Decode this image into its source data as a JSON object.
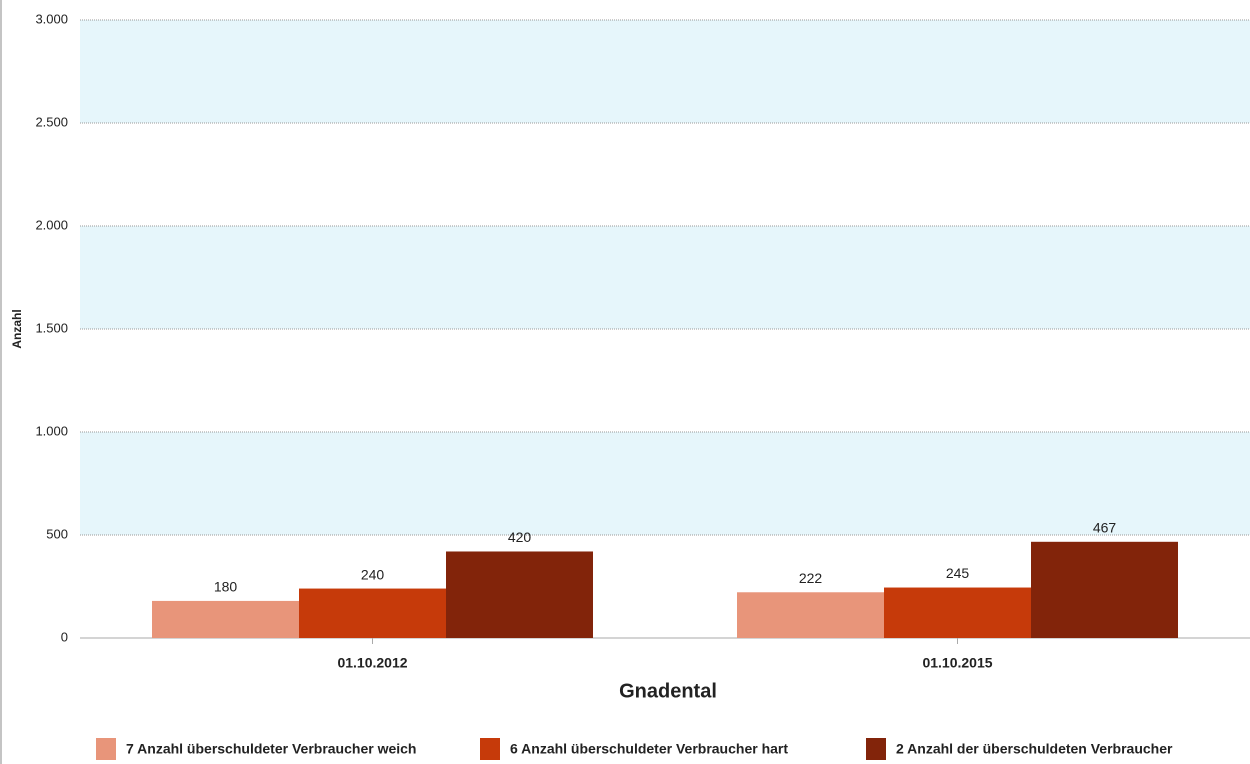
{
  "chart_data": {
    "type": "bar",
    "x_label": "Gnadental",
    "y_label": "Anzahl",
    "categories": [
      "01.10.2012",
      "01.10.2015"
    ],
    "series": [
      {
        "name": "7 Anzahl überschuldeter Verbraucher weich",
        "color": "#e8957a",
        "values": [
          180,
          222
        ]
      },
      {
        "name": "6 Anzahl überschuldeter Verbraucher hart",
        "color": "#c63a0a",
        "values": [
          240,
          245
        ]
      },
      {
        "name": "2 Anzahl der überschuldeten Verbraucher",
        "color": "#82240a",
        "values": [
          420,
          467
        ]
      }
    ],
    "ylim": [
      0,
      3000
    ],
    "yticks": [
      0,
      500,
      {
        "value": 1000,
        "label": "1.000"
      },
      {
        "value": 1500,
        "label": "1.500"
      },
      {
        "value": 2000,
        "label": "2.000"
      },
      {
        "value": 2500,
        "label": "2.500"
      },
      {
        "value": 3000,
        "label": "3.000"
      }
    ],
    "grid": true,
    "band_color": "#e6f6fb",
    "legend": "bottom"
  }
}
